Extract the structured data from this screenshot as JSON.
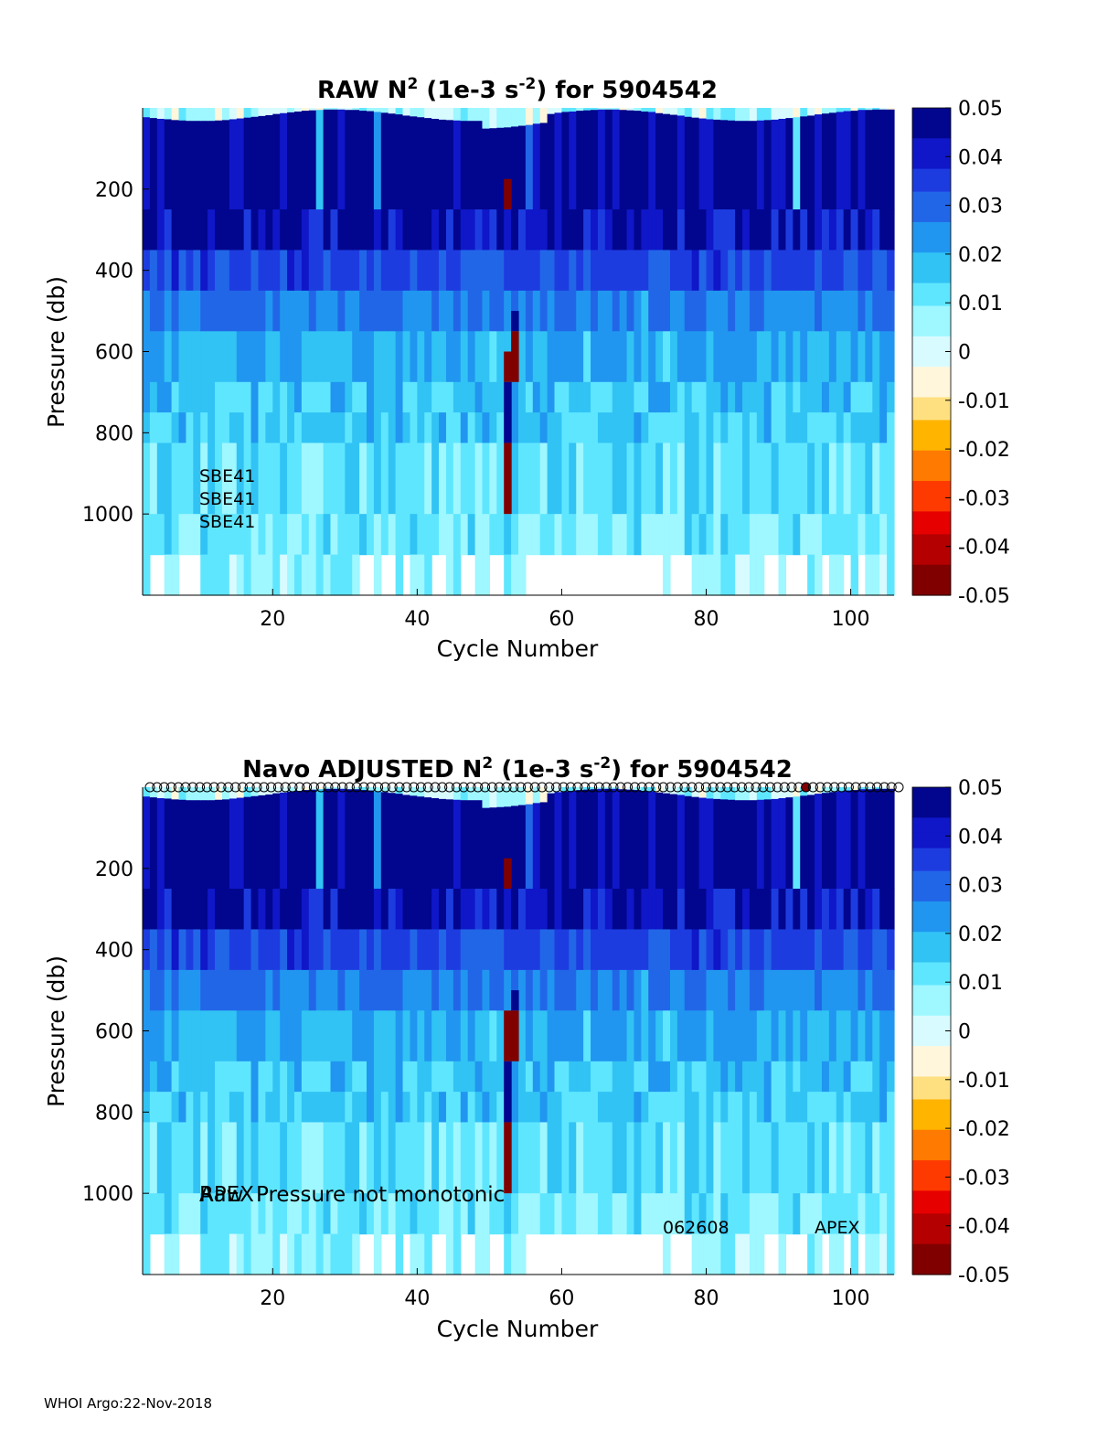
{
  "colormap": [
    "#800000",
    "#b40000",
    "#e60000",
    "#ff3a00",
    "#ff7a00",
    "#ffb400",
    "#ffe080",
    "#fff6dc",
    "#d8fbff",
    "#9ff7ff",
    "#5fe6ff",
    "#31c3f4",
    "#2096f0",
    "#2266e8",
    "#1d3ce0",
    "#0f17c8",
    "#02068e"
  ],
  "footer": "WHOI Argo:22-Nov-2018",
  "charts": [
    {
      "id": "raw",
      "title_prefix": "RAW N",
      "title_sup1": "2",
      "title_mid": " (1e-3 s",
      "title_sup2": "-2",
      "title_suffix": ") for 5904542",
      "ylabel": "Pressure (db)",
      "xlabel": "Cycle Number",
      "annotations": [
        "SBE41",
        "SBE41",
        "SBE41"
      ]
    },
    {
      "id": "adjusted",
      "title_prefix": "Navo  ADJUSTED N",
      "title_sup1": "2",
      "title_mid": " (1e-3 s",
      "title_sup2": "-2",
      "title_suffix": ") for 5904542",
      "ylabel": "Pressure (db)",
      "xlabel": "Cycle Number",
      "annotations": [
        "Raw",
        "APEX",
        "Pressure not monotonic",
        "062608",
        "APEX"
      ]
    }
  ],
  "chart_data": [
    {
      "type": "heatmap",
      "title": "RAW N^2 (1e-3 s^-2) for 5904542",
      "xlabel": "Cycle Number",
      "ylabel": "Pressure (db)",
      "xlim": [
        2,
        106
      ],
      "ylim": [
        0,
        1200
      ],
      "y_reversed": true,
      "xticks": [
        20,
        40,
        60,
        80,
        100
      ],
      "yticks": [
        200,
        400,
        600,
        800,
        1000
      ],
      "colorbar": {
        "clim": [
          -0.05,
          0.05
        ],
        "ticks": [
          0.05,
          0.04,
          0.03,
          0.02,
          0.01,
          0,
          -0.01,
          -0.02,
          -0.03,
          -0.04,
          -0.05
        ]
      },
      "layers": [
        {
          "p_top": 0,
          "p_bottom": 30,
          "value": 0.004
        },
        {
          "p_top": 30,
          "p_bottom": 250,
          "value": 0.05
        },
        {
          "p_top": 250,
          "p_bottom": 350,
          "value": 0.045
        },
        {
          "p_top": 350,
          "p_bottom": 450,
          "value": 0.033
        },
        {
          "p_top": 450,
          "p_bottom": 550,
          "value": 0.026
        },
        {
          "p_top": 550,
          "p_bottom": 675,
          "value": 0.02
        },
        {
          "p_top": 675,
          "p_bottom": 750,
          "value": 0.017
        },
        {
          "p_top": 750,
          "p_bottom": 825,
          "value": 0.016
        },
        {
          "p_top": 825,
          "p_bottom": 1000,
          "value": 0.012
        },
        {
          "p_top": 1000,
          "p_bottom": 1100,
          "value": 0.01
        },
        {
          "p_top": 1100,
          "p_bottom": 1200,
          "value": 0.008
        }
      ],
      "anomalies": [
        {
          "cycle": 52,
          "p_top": 175,
          "p_bottom": 250,
          "value": -0.05
        },
        {
          "cycle": 53,
          "p_top": 500,
          "p_bottom": 550,
          "value": 0.05
        },
        {
          "cycle": 53,
          "p_top": 550,
          "p_bottom": 675,
          "value": -0.045
        },
        {
          "cycle": 52,
          "p_top": 600,
          "p_bottom": 675,
          "value": -0.05
        },
        {
          "cycle": 52,
          "p_top": 675,
          "p_bottom": 825,
          "value": 0.05
        },
        {
          "cycle": 52,
          "p_top": 825,
          "p_bottom": 1000,
          "value": -0.05
        }
      ]
    },
    {
      "type": "heatmap",
      "title": "Navo  ADJUSTED N^2 (1e-3 s^-2) for 5904542",
      "xlabel": "Cycle Number",
      "ylabel": "Pressure (db)",
      "xlim": [
        2,
        106
      ],
      "ylim": [
        0,
        1200
      ],
      "y_reversed": true,
      "xticks": [
        20,
        40,
        60,
        80,
        100
      ],
      "yticks": [
        200,
        400,
        600,
        800,
        1000
      ],
      "colorbar": {
        "clim": [
          -0.05,
          0.05
        ],
        "ticks": [
          0.05,
          0.04,
          0.03,
          0.02,
          0.01,
          0,
          -0.01,
          -0.02,
          -0.03,
          -0.04,
          -0.05
        ]
      },
      "flag_markers": "circles at top of every cycle",
      "layers": [
        {
          "p_top": 0,
          "p_bottom": 30,
          "value": 0.004
        },
        {
          "p_top": 30,
          "p_bottom": 250,
          "value": 0.05
        },
        {
          "p_top": 250,
          "p_bottom": 350,
          "value": 0.045
        },
        {
          "p_top": 350,
          "p_bottom": 450,
          "value": 0.033
        },
        {
          "p_top": 450,
          "p_bottom": 550,
          "value": 0.026
        },
        {
          "p_top": 550,
          "p_bottom": 675,
          "value": 0.02
        },
        {
          "p_top": 675,
          "p_bottom": 750,
          "value": 0.017
        },
        {
          "p_top": 750,
          "p_bottom": 825,
          "value": 0.016
        },
        {
          "p_top": 825,
          "p_bottom": 1000,
          "value": 0.012
        },
        {
          "p_top": 1000,
          "p_bottom": 1100,
          "value": 0.01
        },
        {
          "p_top": 1100,
          "p_bottom": 1200,
          "value": 0.008
        }
      ],
      "anomalies": [
        {
          "cycle": 52,
          "p_top": 175,
          "p_bottom": 250,
          "value": -0.05
        },
        {
          "cycle": 53,
          "p_top": 500,
          "p_bottom": 550,
          "value": 0.05
        },
        {
          "cycle": 53,
          "p_top": 550,
          "p_bottom": 675,
          "value": -0.045
        },
        {
          "cycle": 52,
          "p_top": 550,
          "p_bottom": 675,
          "value": -0.05
        },
        {
          "cycle": 52,
          "p_top": 675,
          "p_bottom": 825,
          "value": 0.05
        },
        {
          "cycle": 52,
          "p_top": 825,
          "p_bottom": 1000,
          "value": -0.05
        }
      ]
    }
  ]
}
